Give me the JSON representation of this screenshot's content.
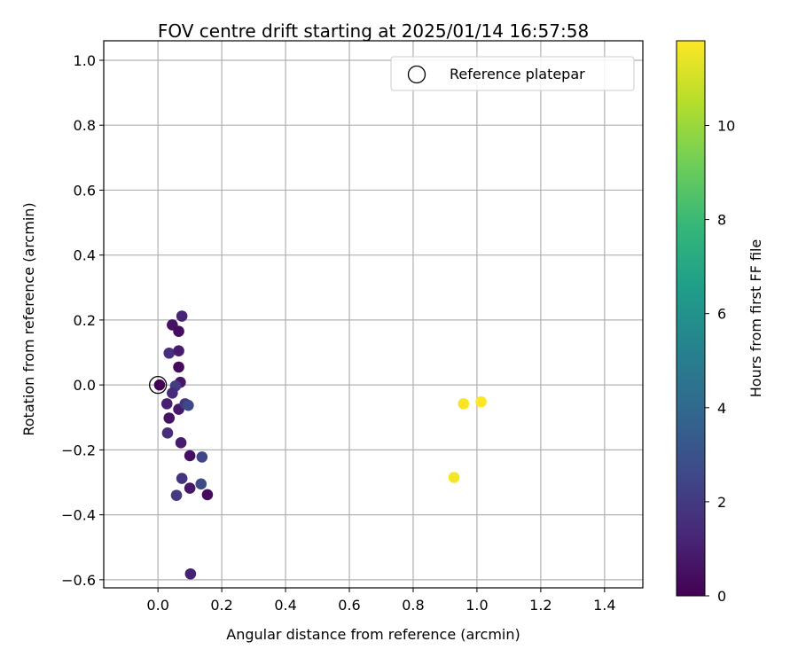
{
  "chart_data": {
    "type": "scatter",
    "title": "FOV centre drift starting at 2025/01/14 16:57:58",
    "xlabel": "Angular distance from reference (arcmin)",
    "ylabel": "Rotation from reference (arcmin)",
    "xlim": [
      -0.17,
      1.52
    ],
    "ylim": [
      -0.625,
      1.06
    ],
    "xticks": [
      0.0,
      0.2,
      0.4,
      0.6,
      0.8,
      1.0,
      1.2,
      1.4
    ],
    "xtick_labels": [
      "0.0",
      "0.2",
      "0.4",
      "0.6",
      "0.8",
      "1.0",
      "1.2",
      "1.4"
    ],
    "yticks": [
      -0.6,
      -0.4,
      -0.2,
      0.0,
      0.2,
      0.4,
      0.6,
      0.8,
      1.0
    ],
    "ytick_labels": [
      "−0.6",
      "−0.4",
      "−0.2",
      "0.0",
      "0.2",
      "0.4",
      "0.6",
      "0.8",
      "1.0"
    ],
    "grid": true,
    "legend": {
      "position": "top-right",
      "entries": [
        "Reference platepar"
      ]
    },
    "reference_point": {
      "x": 0.0,
      "y": 0.0
    },
    "colorbar": {
      "label": "Hours from first FF file",
      "colormap": "viridis",
      "range": [
        0,
        11.8
      ],
      "ticks": [
        0,
        2,
        4,
        6,
        8,
        10
      ],
      "tick_labels": [
        "0",
        "2",
        "4",
        "6",
        "8",
        "10"
      ]
    },
    "points": [
      {
        "x": 0.005,
        "y": 0.0,
        "hours": 0.05
      },
      {
        "x": 0.045,
        "y": 0.185,
        "hours": 0.6
      },
      {
        "x": 0.075,
        "y": 0.212,
        "hours": 1.2
      },
      {
        "x": 0.065,
        "y": 0.165,
        "hours": 0.4
      },
      {
        "x": 0.035,
        "y": 0.098,
        "hours": 1.6
      },
      {
        "x": 0.065,
        "y": 0.105,
        "hours": 0.9
      },
      {
        "x": 0.065,
        "y": 0.055,
        "hours": 0.3
      },
      {
        "x": 0.07,
        "y": 0.008,
        "hours": 0.7
      },
      {
        "x": 0.055,
        "y": -0.003,
        "hours": 2.1
      },
      {
        "x": 0.045,
        "y": -0.025,
        "hours": 1.4
      },
      {
        "x": 0.028,
        "y": -0.058,
        "hours": 1.0
      },
      {
        "x": 0.065,
        "y": -0.075,
        "hours": 0.8
      },
      {
        "x": 0.085,
        "y": -0.058,
        "hours": 1.9
      },
      {
        "x": 0.095,
        "y": -0.063,
        "hours": 2.6
      },
      {
        "x": 0.035,
        "y": -0.102,
        "hours": 0.6
      },
      {
        "x": 0.03,
        "y": -0.148,
        "hours": 1.5
      },
      {
        "x": 0.072,
        "y": -0.178,
        "hours": 0.9
      },
      {
        "x": 0.1,
        "y": -0.218,
        "hours": 0.5
      },
      {
        "x": 0.138,
        "y": -0.222,
        "hours": 2.5
      },
      {
        "x": 0.075,
        "y": -0.288,
        "hours": 1.8
      },
      {
        "x": 0.135,
        "y": -0.305,
        "hours": 2.7
      },
      {
        "x": 0.1,
        "y": -0.318,
        "hours": 0.7
      },
      {
        "x": 0.058,
        "y": -0.34,
        "hours": 2.0
      },
      {
        "x": 0.155,
        "y": -0.338,
        "hours": 0.4
      },
      {
        "x": 0.102,
        "y": -0.582,
        "hours": 1.1
      },
      {
        "x": 0.958,
        "y": -0.058,
        "hours": 11.7
      },
      {
        "x": 1.013,
        "y": -0.052,
        "hours": 11.8
      },
      {
        "x": 0.928,
        "y": -0.285,
        "hours": 11.6
      }
    ]
  }
}
